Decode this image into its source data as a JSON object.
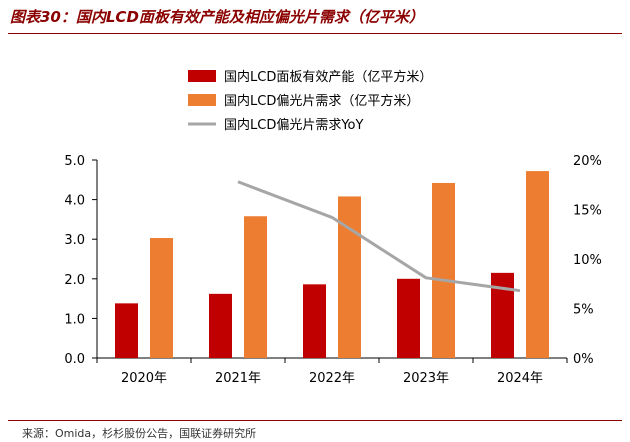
{
  "figure": {
    "title": "图表30：国内LCD面板有效产能及相应偏光片需求（亿平米）",
    "source": "来源：Omida，杉杉股份公告，国联证券研究所"
  },
  "chart_data": {
    "type": "bar",
    "categories": [
      "2020年",
      "2021年",
      "2022年",
      "2023年",
      "2024年"
    ],
    "series": [
      {
        "name": "国内LCD面板有效产能（亿平方米）",
        "type": "bar",
        "axis": "left",
        "color": "#c00000",
        "values": [
          1.38,
          1.62,
          1.86,
          2.0,
          2.15
        ]
      },
      {
        "name": "国内LCD偏光片需求（亿平方米）",
        "type": "bar",
        "axis": "left",
        "color": "#ed7d31",
        "values": [
          3.03,
          3.58,
          4.08,
          4.42,
          4.72
        ]
      },
      {
        "name": "国内LCD偏光片需求YoY",
        "type": "line",
        "axis": "right",
        "color": "#a6a6a6",
        "values": [
          null,
          17.8,
          14.2,
          8.1,
          6.8
        ]
      }
    ],
    "left_axis": {
      "ylim": [
        0,
        5
      ],
      "ticks": [
        "0.0",
        "1.0",
        "2.0",
        "3.0",
        "4.0",
        "5.0"
      ]
    },
    "right_axis": {
      "ylim": [
        0,
        20
      ],
      "ticks": [
        "0%",
        "5%",
        "10%",
        "15%",
        "20%"
      ]
    },
    "grid": false,
    "legend_position": "top"
  }
}
